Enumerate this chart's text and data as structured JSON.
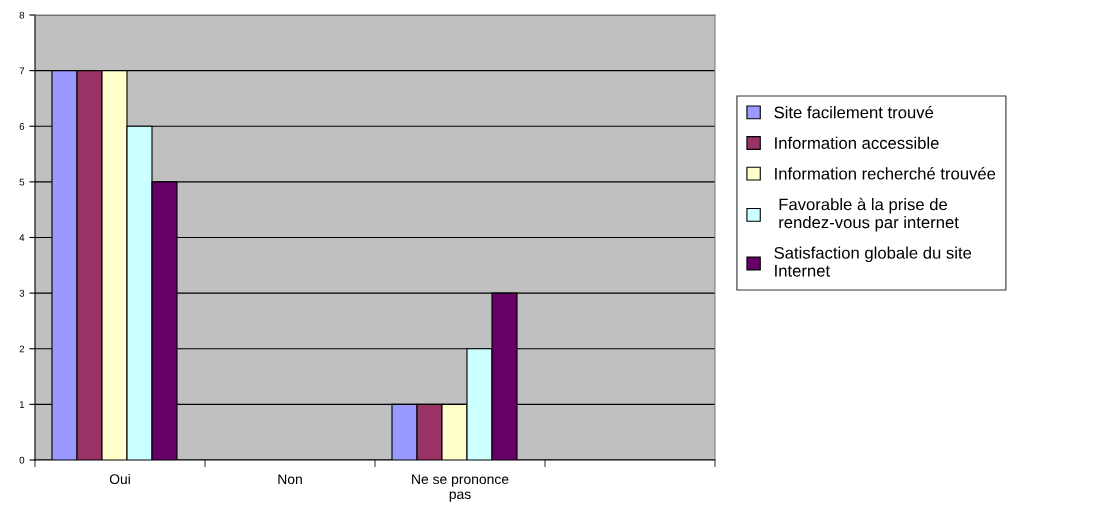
{
  "chart_data": {
    "type": "bar",
    "categories": [
      "Oui",
      "Non",
      "Ne se prononce\npas",
      null
    ],
    "series": [
      {
        "name": "Site facilement trouvé",
        "color": "#9999ff",
        "values": [
          7,
          0,
          1,
          null
        ]
      },
      {
        "name": "Information accessible",
        "color": "#993366",
        "values": [
          7,
          0,
          1,
          null
        ]
      },
      {
        "name": "Information recherché trouvée",
        "color": "#ffffcc",
        "values": [
          7,
          0,
          1,
          null
        ]
      },
      {
        "name": " Favorable à la prise de\n rendez-vous par internet",
        "color": "#ccffff",
        "values": [
          6,
          0,
          2,
          null
        ]
      },
      {
        "name": "Satisfaction globale du site\nInternet",
        "color": "#660066",
        "values": [
          5,
          0,
          3,
          null
        ]
      }
    ],
    "ylim": [
      0,
      8
    ],
    "yticks": [
      0,
      1,
      2,
      3,
      4,
      5,
      6,
      7,
      8
    ],
    "grid": "y",
    "legend": "right"
  }
}
